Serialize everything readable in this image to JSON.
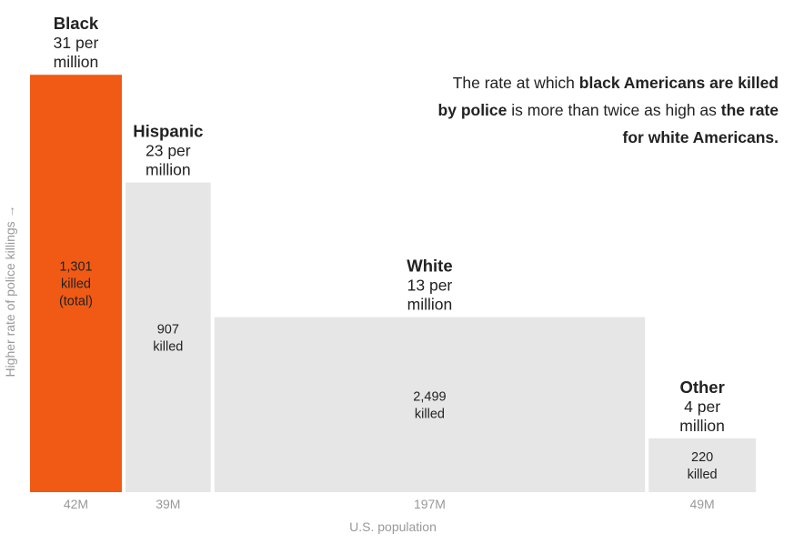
{
  "chart_data": {
    "type": "bar",
    "subtype": "variable-width (marimekko)",
    "ylabel": "Higher rate of police killings →",
    "xlabel": "U.S. population",
    "categories": [
      "Black",
      "Hispanic",
      "White",
      "Other"
    ],
    "rate_per_million": [
      31,
      23,
      13,
      4
    ],
    "rate_labels": [
      "31 per million",
      "23 per million",
      "13 per million",
      "4 per million"
    ],
    "population_millions": [
      42,
      39,
      197,
      49
    ],
    "population_labels": [
      "42M",
      "39M",
      "197M",
      "49M"
    ],
    "killed": [
      1301,
      907,
      2499,
      220
    ],
    "killed_labels": [
      [
        "1,301",
        "killed",
        "(total)"
      ],
      [
        "907",
        "killed"
      ],
      [
        "2,499",
        "killed"
      ],
      [
        "220",
        "killed"
      ]
    ],
    "colors": [
      "#f05a14",
      "#e6e6e6",
      "#e6e6e6",
      "#e6e6e6"
    ],
    "label_colors": [
      "#222222",
      "#222222",
      "#222222",
      "#222222"
    ],
    "axis_label_color": "#999999",
    "grid": false,
    "legend": "none"
  },
  "annotation": {
    "parts": [
      {
        "text": "The rate at which ",
        "bold": false
      },
      {
        "text": "black Americans are killed by police",
        "bold": true
      },
      {
        "text": " is more than twice as high as ",
        "bold": false
      },
      {
        "text": "the rate for white Americans.",
        "bold": true
      }
    ]
  }
}
